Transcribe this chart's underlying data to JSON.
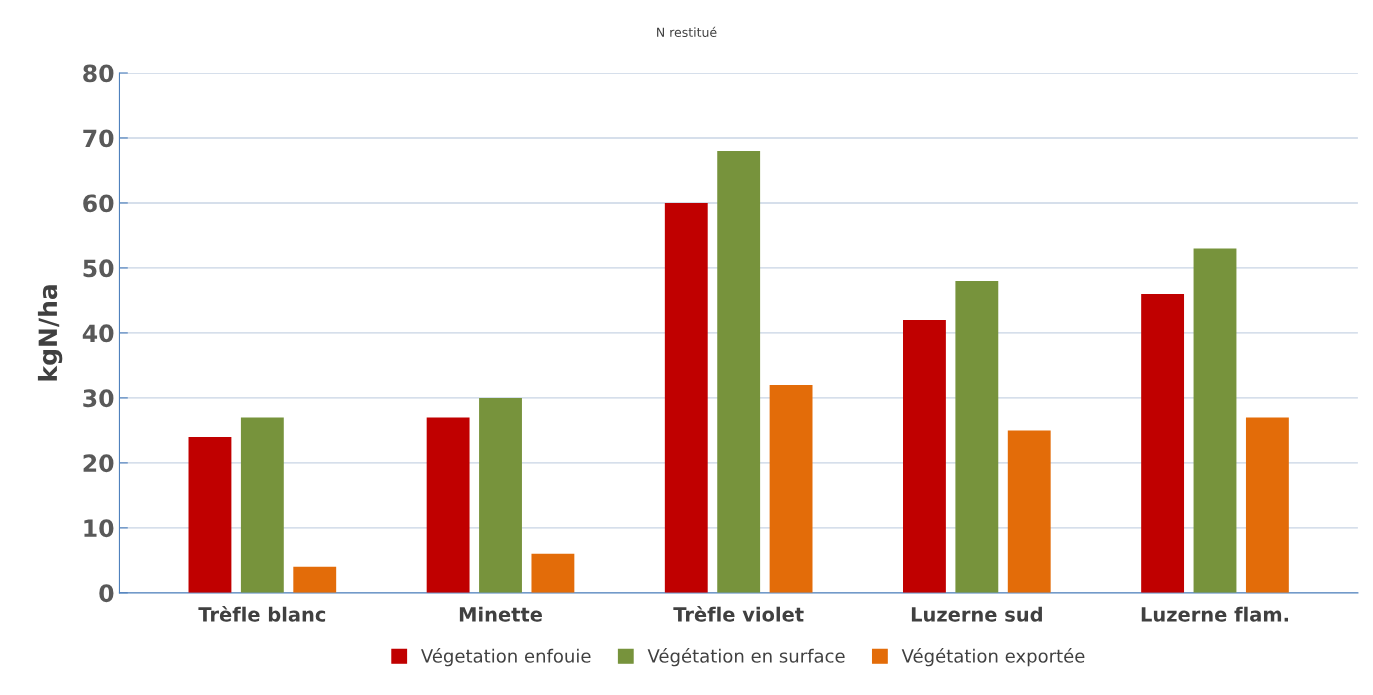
{
  "chart_data": {
    "type": "bar",
    "title": "N restitué",
    "ylabel": "kgN/ha",
    "categories": [
      "Trèfle blanc",
      "Minette",
      "Trèfle violet",
      "Luzerne sud",
      "Luzerne flam."
    ],
    "series": [
      {
        "name": "Végetation enfouie",
        "color": "#c00000",
        "values": [
          24,
          27,
          60,
          42,
          46
        ]
      },
      {
        "name": "Végétation en surface",
        "color": "#77933c",
        "values": [
          27,
          30,
          68,
          48,
          53
        ]
      },
      {
        "name": "Végétation exportée",
        "color": "#e36c09",
        "values": [
          4,
          6,
          32,
          25,
          27
        ]
      }
    ],
    "ylim": [
      0,
      80
    ],
    "yticks": [
      0,
      10,
      20,
      30,
      40,
      50,
      60,
      70,
      80
    ],
    "grid": "y",
    "legend": "bottom"
  }
}
